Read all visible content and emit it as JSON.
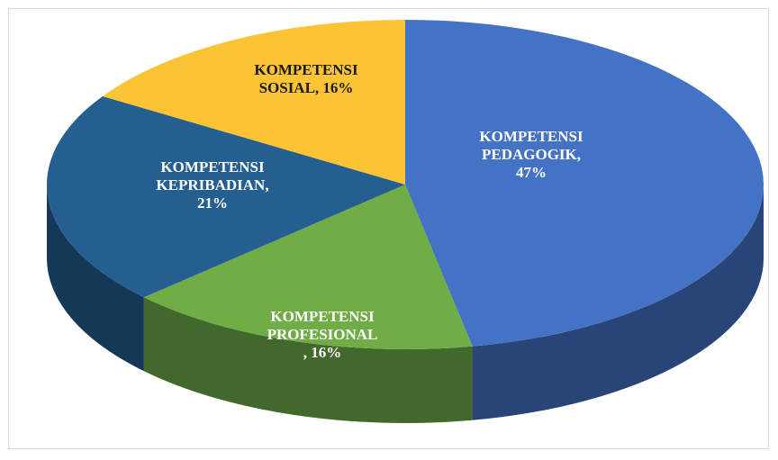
{
  "chart_data": {
    "type": "pie",
    "values": [
      47,
      16,
      21,
      16
    ],
    "value_labels": [
      "KOMPETENSI\nPEDAGOGIK,\n47%",
      "KOMPETENSI\nPROFESIONAL\n, 16%",
      "KOMPETENSI\nKEPRIBADIAN,\n21%",
      "KOMPETENSI\nSOSIAL, 16%"
    ],
    "colors": [
      "#4472c4",
      "#70ad47",
      "#255e91",
      "#fcc434"
    ],
    "label_colors": [
      "#ffffff",
      "#ffffff",
      "#ffffff",
      "#1a1a1a"
    ]
  }
}
